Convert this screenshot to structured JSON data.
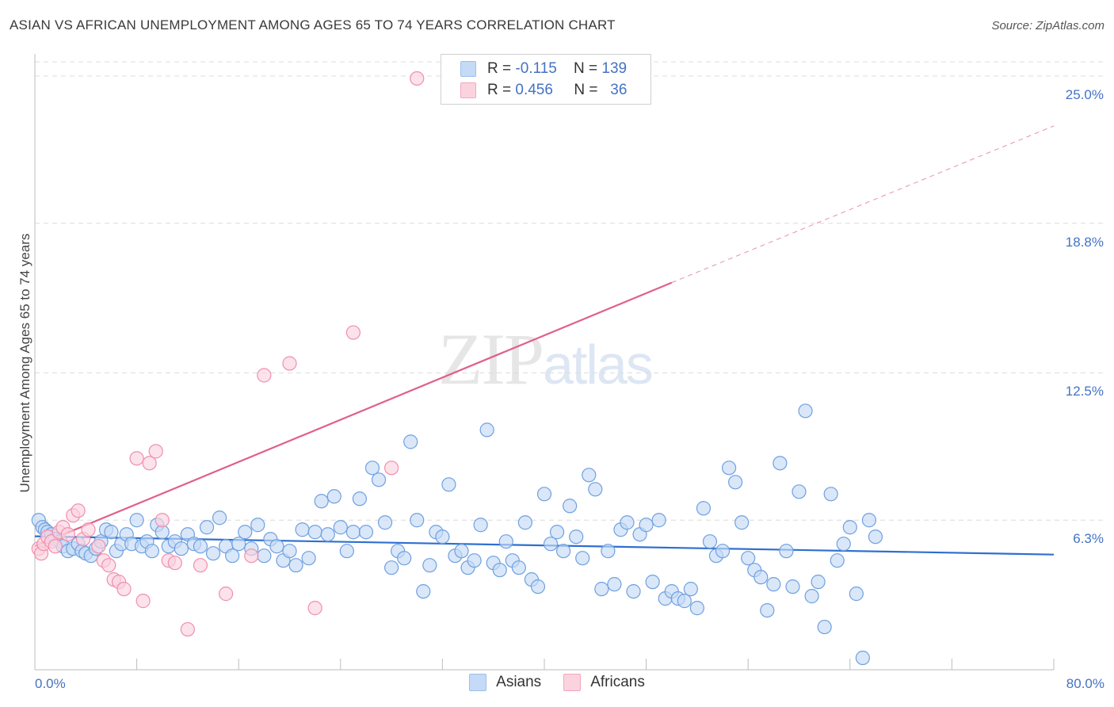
{
  "title": "ASIAN VS AFRICAN UNEMPLOYMENT AMONG AGES 65 TO 74 YEARS CORRELATION CHART",
  "source": "Source: ZipAtlas.com",
  "watermark": {
    "zip": "ZIP",
    "atlas": "atlas"
  },
  "legend": {
    "rows": [
      {
        "r_label": "R =",
        "r_value": "-0.115",
        "n_label": "N =",
        "n_value": "139",
        "color": "#9dc0ec",
        "fill": "#c5daf6"
      },
      {
        "r_label": "R =",
        "r_value": "0.456",
        "n_label": "N =",
        "n_value": "36",
        "color": "#f4a6bd",
        "fill": "#fbd3df"
      }
    ]
  },
  "bottom_legend": [
    {
      "label": "Asians",
      "color": "#9dc0ec",
      "fill": "#c5daf6"
    },
    {
      "label": "Africans",
      "color": "#f4a6bd",
      "fill": "#fbd3df"
    }
  ],
  "chart_data": {
    "type": "scatter",
    "title": "ASIAN VS AFRICAN UNEMPLOYMENT AMONG AGES 65 TO 74 YEARS CORRELATION CHART",
    "xlabel": "",
    "ylabel": "Unemployment Among Ages 65 to 74 years",
    "xlim": [
      0,
      80
    ],
    "ylim": [
      0,
      25.6
    ],
    "x_tick_labels": [
      "0.0%",
      "80.0%"
    ],
    "y_ticks": [
      6.3,
      12.5,
      18.8,
      25.0
    ],
    "y_tick_labels": [
      "6.3%",
      "12.5%",
      "18.8%",
      "25.0%"
    ],
    "grid": true,
    "series": [
      {
        "name": "Asians",
        "color": "#6fa0e0",
        "fill": "#c5daf6",
        "trend": {
          "x0": 0,
          "y0": 5.62,
          "x1": 80,
          "y1": 4.85,
          "color": "#2e6fd0"
        },
        "points": [
          [
            0.3,
            6.3
          ],
          [
            0.6,
            6.0
          ],
          [
            0.8,
            5.9
          ],
          [
            1.0,
            5.8
          ],
          [
            1.3,
            5.7
          ],
          [
            1.6,
            5.5
          ],
          [
            2.0,
            5.4
          ],
          [
            2.2,
            5.2
          ],
          [
            2.6,
            5.0
          ],
          [
            3.0,
            5.1
          ],
          [
            3.4,
            5.3
          ],
          [
            3.7,
            5.0
          ],
          [
            4.0,
            4.9
          ],
          [
            4.4,
            4.8
          ],
          [
            4.8,
            5.1
          ],
          [
            5.2,
            5.4
          ],
          [
            5.6,
            5.9
          ],
          [
            6.0,
            5.8
          ],
          [
            6.4,
            5.0
          ],
          [
            6.8,
            5.3
          ],
          [
            7.2,
            5.7
          ],
          [
            7.6,
            5.3
          ],
          [
            8.0,
            6.3
          ],
          [
            8.4,
            5.2
          ],
          [
            8.8,
            5.4
          ],
          [
            9.2,
            5.0
          ],
          [
            9.6,
            6.1
          ],
          [
            10.0,
            5.8
          ],
          [
            10.5,
            5.2
          ],
          [
            11.0,
            5.4
          ],
          [
            11.5,
            5.1
          ],
          [
            12.0,
            5.7
          ],
          [
            12.5,
            5.3
          ],
          [
            13.0,
            5.2
          ],
          [
            13.5,
            6.0
          ],
          [
            14.0,
            4.9
          ],
          [
            14.5,
            6.4
          ],
          [
            15.0,
            5.2
          ],
          [
            15.5,
            4.8
          ],
          [
            16.0,
            5.3
          ],
          [
            16.5,
            5.8
          ],
          [
            17.0,
            5.1
          ],
          [
            17.5,
            6.1
          ],
          [
            18.0,
            4.8
          ],
          [
            18.5,
            5.5
          ],
          [
            19.0,
            5.2
          ],
          [
            19.5,
            4.6
          ],
          [
            20.0,
            5.0
          ],
          [
            20.5,
            4.4
          ],
          [
            21.0,
            5.9
          ],
          [
            21.5,
            4.7
          ],
          [
            22.0,
            5.8
          ],
          [
            22.5,
            7.1
          ],
          [
            23.0,
            5.7
          ],
          [
            23.5,
            7.3
          ],
          [
            24.0,
            6.0
          ],
          [
            24.5,
            5.0
          ],
          [
            25.0,
            5.8
          ],
          [
            25.5,
            7.2
          ],
          [
            26.0,
            5.8
          ],
          [
            26.5,
            8.5
          ],
          [
            27.0,
            8.0
          ],
          [
            27.5,
            6.2
          ],
          [
            28.0,
            4.3
          ],
          [
            28.5,
            5.0
          ],
          [
            29.0,
            4.7
          ],
          [
            29.5,
            9.6
          ],
          [
            30.0,
            6.3
          ],
          [
            30.5,
            3.3
          ],
          [
            31.0,
            4.4
          ],
          [
            31.5,
            5.8
          ],
          [
            32.0,
            5.6
          ],
          [
            32.5,
            7.8
          ],
          [
            33.0,
            4.8
          ],
          [
            33.5,
            5.0
          ],
          [
            34.0,
            4.3
          ],
          [
            34.5,
            4.6
          ],
          [
            35.0,
            6.1
          ],
          [
            35.5,
            10.1
          ],
          [
            36.0,
            4.5
          ],
          [
            36.5,
            4.2
          ],
          [
            37.0,
            5.4
          ],
          [
            37.5,
            4.6
          ],
          [
            38.0,
            4.3
          ],
          [
            38.5,
            6.2
          ],
          [
            39.0,
            3.8
          ],
          [
            39.5,
            3.5
          ],
          [
            40.0,
            7.4
          ],
          [
            40.5,
            5.3
          ],
          [
            41.0,
            5.8
          ],
          [
            41.5,
            5.0
          ],
          [
            42.0,
            6.9
          ],
          [
            42.5,
            5.6
          ],
          [
            43.0,
            4.7
          ],
          [
            43.5,
            8.2
          ],
          [
            44.0,
            7.6
          ],
          [
            44.5,
            3.4
          ],
          [
            45.0,
            5.0
          ],
          [
            45.5,
            3.6
          ],
          [
            46.0,
            5.9
          ],
          [
            46.5,
            6.2
          ],
          [
            47.0,
            3.3
          ],
          [
            47.5,
            5.7
          ],
          [
            48.0,
            6.1
          ],
          [
            48.5,
            3.7
          ],
          [
            49.0,
            6.3
          ],
          [
            49.5,
            3.0
          ],
          [
            50.0,
            3.3
          ],
          [
            50.5,
            3.0
          ],
          [
            51.0,
            2.9
          ],
          [
            51.5,
            3.4
          ],
          [
            52.0,
            2.6
          ],
          [
            52.5,
            6.8
          ],
          [
            53.0,
            5.4
          ],
          [
            53.5,
            4.8
          ],
          [
            54.0,
            5.0
          ],
          [
            54.5,
            8.5
          ],
          [
            55.0,
            7.9
          ],
          [
            55.5,
            6.2
          ],
          [
            56.0,
            4.7
          ],
          [
            56.5,
            4.2
          ],
          [
            57.0,
            3.9
          ],
          [
            57.5,
            2.5
          ],
          [
            58.0,
            3.6
          ],
          [
            58.5,
            8.7
          ],
          [
            59.0,
            5.0
          ],
          [
            59.5,
            3.5
          ],
          [
            60.0,
            7.5
          ],
          [
            60.5,
            10.9
          ],
          [
            61.0,
            3.1
          ],
          [
            61.5,
            3.7
          ],
          [
            62.0,
            1.8
          ],
          [
            62.5,
            7.4
          ],
          [
            63.0,
            4.6
          ],
          [
            63.5,
            5.3
          ],
          [
            64.0,
            6.0
          ],
          [
            64.5,
            3.2
          ],
          [
            65.0,
            0.5
          ],
          [
            65.5,
            6.3
          ],
          [
            66.0,
            5.6
          ]
        ]
      },
      {
        "name": "Africans",
        "color": "#f08fae",
        "fill": "#fbd3df",
        "trend": {
          "x0": 0,
          "y0": 5.2,
          "x1": 50,
          "y1": 16.3,
          "dash_x1": 80,
          "dash_y1": 22.9,
          "color": "#e0608a"
        },
        "points": [
          [
            0.3,
            5.1
          ],
          [
            0.5,
            4.9
          ],
          [
            0.7,
            5.3
          ],
          [
            1.0,
            5.6
          ],
          [
            1.3,
            5.4
          ],
          [
            1.6,
            5.2
          ],
          [
            1.9,
            5.8
          ],
          [
            2.2,
            6.0
          ],
          [
            2.6,
            5.7
          ],
          [
            3.0,
            6.5
          ],
          [
            3.4,
            6.7
          ],
          [
            3.8,
            5.5
          ],
          [
            4.2,
            5.9
          ],
          [
            5.0,
            5.2
          ],
          [
            5.4,
            4.6
          ],
          [
            5.8,
            4.4
          ],
          [
            6.2,
            3.8
          ],
          [
            6.6,
            3.7
          ],
          [
            7.0,
            3.4
          ],
          [
            8.0,
            8.9
          ],
          [
            8.5,
            2.9
          ],
          [
            9.0,
            8.7
          ],
          [
            9.5,
            9.2
          ],
          [
            10.0,
            6.3
          ],
          [
            10.5,
            4.6
          ],
          [
            11.0,
            4.5
          ],
          [
            12.0,
            1.7
          ],
          [
            13.0,
            4.4
          ],
          [
            15.0,
            3.2
          ],
          [
            17.0,
            4.8
          ],
          [
            18.0,
            12.4
          ],
          [
            20.0,
            12.9
          ],
          [
            22.0,
            2.6
          ],
          [
            25.0,
            14.2
          ],
          [
            28.0,
            8.5
          ],
          [
            30.0,
            24.9
          ]
        ]
      }
    ]
  }
}
